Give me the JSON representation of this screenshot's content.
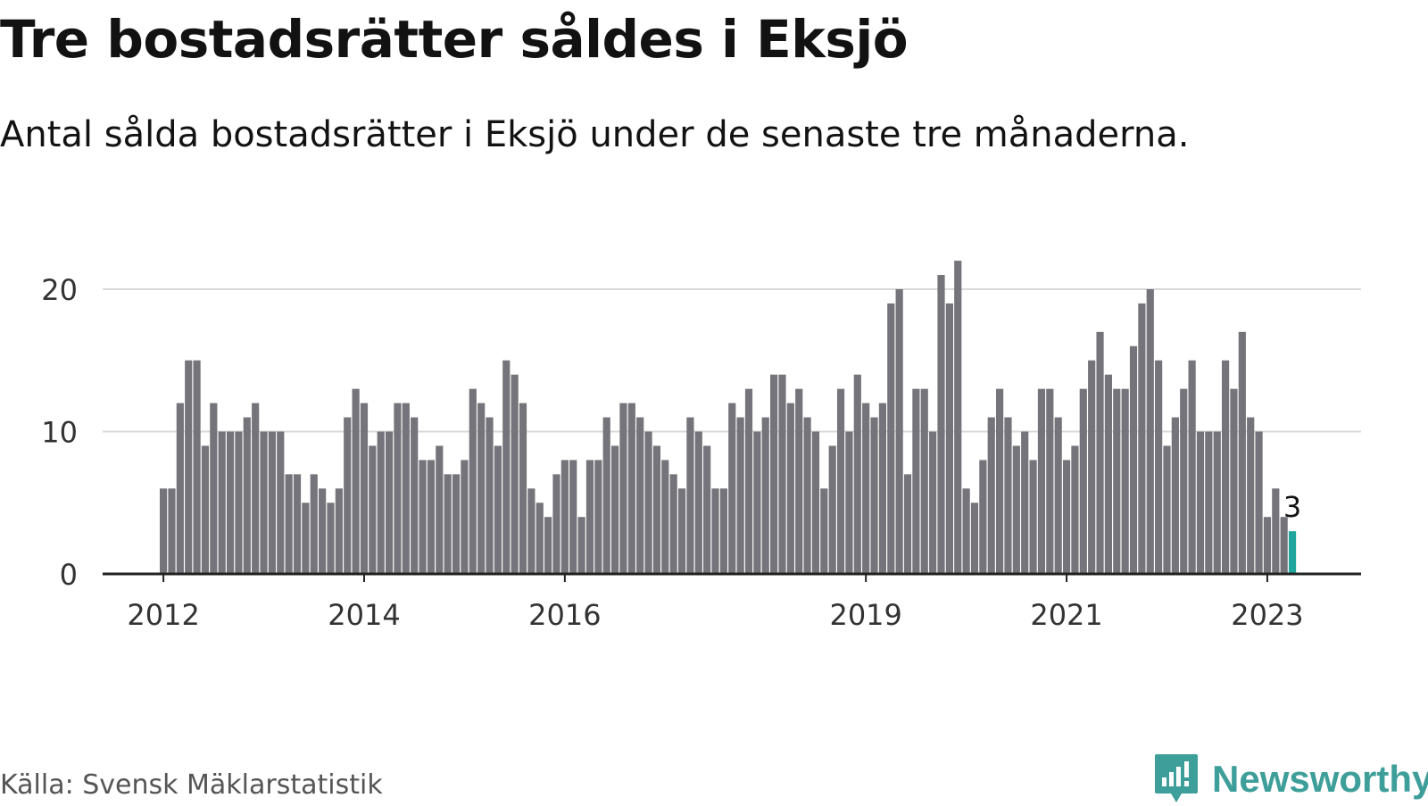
{
  "title": "Tre bostadsrätter såldes i Eksjö",
  "subtitle": "Antal sålda bostadsrätter i Eksjö under de senaste tre månaderna.",
  "source": "Källa: Svensk Mäklarstatistik",
  "brand": "Newsworthy",
  "colors": {
    "bar": "#75747a",
    "highlight": "#1fa59b",
    "grid": "#d9d9d9",
    "axis": "#222222",
    "brand": "#3e9e99"
  },
  "chart_data": {
    "type": "bar",
    "x_unit": "month",
    "start": "2012-01",
    "values": [
      6,
      6,
      12,
      15,
      15,
      9,
      12,
      10,
      10,
      10,
      11,
      12,
      10,
      10,
      10,
      7,
      7,
      5,
      7,
      6,
      5,
      6,
      11,
      13,
      12,
      9,
      10,
      10,
      12,
      12,
      11,
      8,
      8,
      9,
      7,
      7,
      8,
      13,
      12,
      11,
      9,
      15,
      14,
      12,
      6,
      5,
      4,
      7,
      8,
      8,
      4,
      8,
      8,
      11,
      9,
      12,
      12,
      11,
      10,
      9,
      8,
      7,
      6,
      11,
      10,
      9,
      6,
      6,
      12,
      11,
      13,
      10,
      11,
      14,
      14,
      12,
      13,
      11,
      10,
      6,
      9,
      13,
      10,
      14,
      12,
      11,
      12,
      19,
      20,
      7,
      13,
      13,
      10,
      21,
      19,
      22,
      6,
      5,
      8,
      11,
      13,
      11,
      9,
      10,
      8,
      13,
      13,
      11,
      8,
      9,
      13,
      15,
      17,
      14,
      13,
      13,
      16,
      19,
      20,
      15,
      9,
      11,
      13,
      15,
      10,
      10,
      10,
      15,
      13,
      17,
      11,
      10,
      4,
      6,
      4,
      3
    ],
    "highlight_last": true,
    "value_label": "3",
    "x_tick_labels": [
      "2012",
      "2014",
      "2016",
      "2019",
      "2021",
      "2023"
    ],
    "y_tick_labels": [
      "0",
      "10",
      "20"
    ],
    "ylim": [
      0,
      22
    ],
    "grid": "horizontal"
  }
}
